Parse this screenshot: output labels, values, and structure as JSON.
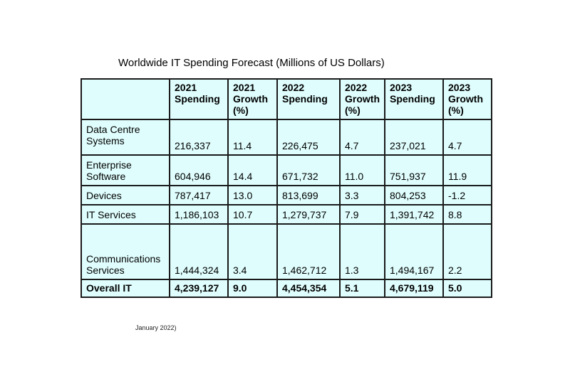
{
  "title": "Worldwide IT Spending Forecast (Millions of US Dollars)",
  "table": {
    "headers": [
      "",
      "2021\nSpending",
      "2021\nGrowth\n(%)",
      "2022\nSpending",
      "2022\nGrowth\n(%)",
      "2023\nSpending",
      "2023\nGrowth\n(%)"
    ],
    "rows": [
      [
        "Data Centre\nSystems",
        "216,337",
        "11.4",
        "226,475",
        "4.7",
        "237,021",
        "4.7"
      ],
      [
        "Enterprise\nSoftware",
        "604,946",
        "14.4",
        "671,732",
        "11.0",
        "751,937",
        "11.9"
      ],
      [
        "Devices",
        "787,417",
        "13.0",
        "813,699",
        "3.3",
        "804,253",
        "-1.2"
      ],
      [
        "IT Services",
        "1,186,103",
        "10.7",
        "1,279,737",
        "7.9",
        "1,391,742",
        "8.8"
      ],
      [
        "Communications\nServices",
        "1,444,324",
        "3.4",
        "1,462,712",
        "1.3",
        "1,494,167",
        "2.2"
      ],
      [
        "Overall IT",
        "4,239,127",
        "9.0",
        "4,454,354",
        "5.1",
        "4,679,119",
        "5.0"
      ]
    ]
  },
  "source_note": "January 2022)"
}
